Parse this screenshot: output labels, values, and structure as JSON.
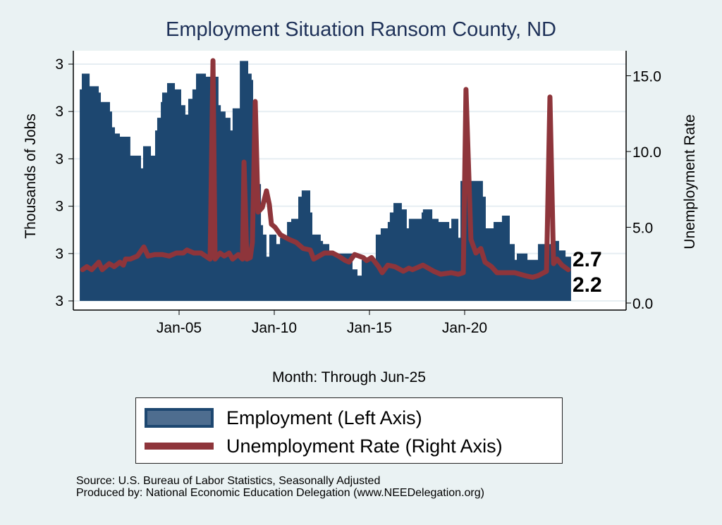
{
  "chart_data": {
    "type": "bar+line",
    "title": "Employment Situation Ransom  County, ND",
    "xlabel": "Month: Through Jun-25",
    "ylabel_left": "Thousands of Jobs",
    "ylabel_right": "Unemployment Rate",
    "x_ticks": [
      {
        "year": 2005,
        "label": "Jan-05"
      },
      {
        "year": 2010,
        "label": "Jan-10"
      },
      {
        "year": 2015,
        "label": "Jan-15"
      },
      {
        "year": 2020,
        "label": "Jan-20"
      }
    ],
    "left_ticks": [
      {
        "value": 2.6,
        "label": "3"
      },
      {
        "value": 2.75,
        "label": "3"
      },
      {
        "value": 2.9,
        "label": "3"
      },
      {
        "value": 3.05,
        "label": "3"
      },
      {
        "value": 3.2,
        "label": "3"
      },
      {
        "value": 3.35,
        "label": "3"
      }
    ],
    "right_ticks": [
      {
        "value": 0,
        "label": "0.0"
      },
      {
        "value": 5,
        "label": "5.0"
      },
      {
        "value": 10,
        "label": "10.0"
      },
      {
        "value": 15,
        "label": "15.0"
      }
    ],
    "xlim": [
      1999.75,
      2025.6
    ],
    "ylim_left": [
      2.6,
      3.35
    ],
    "ylim_right": [
      0,
      15
    ],
    "grid": true,
    "end_labels": [
      "2.7",
      "2.2"
    ],
    "series": [
      {
        "name": "Employment (Left Axis)",
        "type": "step-area",
        "color": "#1d4770",
        "points": [
          [
            1999.78,
            3.27
          ],
          [
            1999.89,
            3.32
          ],
          [
            2000.3,
            3.28
          ],
          [
            2000.78,
            3.26
          ],
          [
            2000.89,
            3.23
          ],
          [
            2001.37,
            3.2
          ],
          [
            2001.48,
            3.15
          ],
          [
            2001.63,
            3.13
          ],
          [
            2001.89,
            3.12
          ],
          [
            2002.44,
            3.06
          ],
          [
            2003.0,
            3.02
          ],
          [
            2003.11,
            3.09
          ],
          [
            2003.52,
            3.06
          ],
          [
            2003.74,
            3.14
          ],
          [
            2003.85,
            3.18
          ],
          [
            2004.04,
            3.23
          ],
          [
            2004.11,
            3.26
          ],
          [
            2004.37,
            3.29
          ],
          [
            2004.78,
            3.27
          ],
          [
            2005.11,
            3.22
          ],
          [
            2005.33,
            3.19
          ],
          [
            2005.48,
            3.24
          ],
          [
            2005.7,
            3.27
          ],
          [
            2005.89,
            3.32
          ],
          [
            2006.41,
            3.31
          ],
          [
            2007.07,
            3.22
          ],
          [
            2007.19,
            3.2
          ],
          [
            2007.44,
            3.18
          ],
          [
            2007.7,
            3.14
          ],
          [
            2007.81,
            3.21
          ],
          [
            2008.19,
            3.36
          ],
          [
            2008.63,
            3.32
          ],
          [
            2008.81,
            3.3
          ],
          [
            2008.89,
            3.11
          ],
          [
            2009.11,
            2.97
          ],
          [
            2009.3,
            2.84
          ],
          [
            2009.41,
            2.81
          ],
          [
            2009.59,
            2.74
          ],
          [
            2009.74,
            2.81
          ],
          [
            2010.11,
            2.78
          ],
          [
            2010.3,
            2.8
          ],
          [
            2010.67,
            2.85
          ],
          [
            2010.89,
            2.86
          ],
          [
            2011.26,
            2.93
          ],
          [
            2011.44,
            2.95
          ],
          [
            2011.89,
            2.88
          ],
          [
            2012.0,
            2.81
          ],
          [
            2012.44,
            2.79
          ],
          [
            2012.56,
            2.78
          ],
          [
            2012.89,
            2.75
          ],
          [
            2014.11,
            2.7
          ],
          [
            2014.37,
            2.68
          ],
          [
            2014.59,
            2.73
          ],
          [
            2015.33,
            2.81
          ],
          [
            2015.59,
            2.83
          ],
          [
            2015.96,
            2.85
          ],
          [
            2016.07,
            2.88
          ],
          [
            2016.26,
            2.91
          ],
          [
            2016.7,
            2.89
          ],
          [
            2016.96,
            2.83
          ],
          [
            2017.07,
            2.86
          ],
          [
            2017.74,
            2.88
          ],
          [
            2017.81,
            2.89
          ],
          [
            2018.3,
            2.86
          ],
          [
            2018.63,
            2.85
          ],
          [
            2019.19,
            2.83
          ],
          [
            2019.3,
            2.86
          ],
          [
            2019.67,
            2.8
          ],
          [
            2019.78,
            2.98
          ],
          [
            2020.96,
            2.93
          ],
          [
            2021.11,
            2.83
          ],
          [
            2021.52,
            2.85
          ],
          [
            2021.96,
            2.87
          ],
          [
            2022.37,
            2.78
          ],
          [
            2022.63,
            2.73
          ],
          [
            2022.74,
            2.75
          ],
          [
            2023.3,
            2.73
          ],
          [
            2023.85,
            2.78
          ],
          [
            2024.74,
            2.79
          ],
          [
            2024.96,
            2.76
          ],
          [
            2025.3,
            2.74
          ],
          [
            2025.59,
            2.74
          ]
        ]
      },
      {
        "name": "Unemployment Rate (Right Axis)",
        "type": "line",
        "color": "#8e353b",
        "points": [
          [
            1999.93,
            2.2
          ],
          [
            2000.15,
            2.4
          ],
          [
            2000.41,
            2.2
          ],
          [
            2000.78,
            2.7
          ],
          [
            2000.96,
            2.2
          ],
          [
            2001.33,
            2.6
          ],
          [
            2001.59,
            2.4
          ],
          [
            2001.89,
            2.7
          ],
          [
            2002.07,
            2.5
          ],
          [
            2002.19,
            2.9
          ],
          [
            2002.44,
            2.9
          ],
          [
            2002.81,
            3.1
          ],
          [
            2003.15,
            3.7
          ],
          [
            2003.37,
            3.1
          ],
          [
            2003.74,
            3.2
          ],
          [
            2004.11,
            3.2
          ],
          [
            2004.48,
            3.1
          ],
          [
            2004.85,
            3.3
          ],
          [
            2005.22,
            3.3
          ],
          [
            2005.41,
            3.5
          ],
          [
            2005.78,
            3.3
          ],
          [
            2006.15,
            3.3
          ],
          [
            2006.63,
            2.9
          ],
          [
            2006.78,
            16.0
          ],
          [
            2006.89,
            2.9
          ],
          [
            2007.15,
            3.3
          ],
          [
            2007.37,
            3.1
          ],
          [
            2007.63,
            3.3
          ],
          [
            2007.81,
            2.9
          ],
          [
            2008.11,
            3.2
          ],
          [
            2008.33,
            2.9
          ],
          [
            2008.41,
            9.3
          ],
          [
            2008.56,
            2.9
          ],
          [
            2008.74,
            3.0
          ],
          [
            2008.85,
            4.0
          ],
          [
            2009.0,
            13.3
          ],
          [
            2009.15,
            6.0
          ],
          [
            2009.37,
            6.3
          ],
          [
            2009.59,
            7.4
          ],
          [
            2009.74,
            6.5
          ],
          [
            2009.85,
            5.2
          ],
          [
            2010.04,
            5.0
          ],
          [
            2010.33,
            4.5
          ],
          [
            2010.78,
            4.2
          ],
          [
            2011.15,
            4.0
          ],
          [
            2011.52,
            3.6
          ],
          [
            2011.89,
            3.5
          ],
          [
            2012.07,
            2.9
          ],
          [
            2012.63,
            3.3
          ],
          [
            2013.07,
            3.3
          ],
          [
            2013.37,
            3.1
          ],
          [
            2013.74,
            2.8
          ],
          [
            2013.93,
            2.7
          ],
          [
            2014.22,
            3.2
          ],
          [
            2014.67,
            3.0
          ],
          [
            2014.85,
            2.8
          ],
          [
            2015.11,
            3.0
          ],
          [
            2015.48,
            2.4
          ],
          [
            2015.67,
            2.0
          ],
          [
            2015.96,
            2.5
          ],
          [
            2016.33,
            2.4
          ],
          [
            2016.78,
            2.1
          ],
          [
            2017.07,
            2.3
          ],
          [
            2017.26,
            2.2
          ],
          [
            2017.81,
            2.5
          ],
          [
            2018.37,
            2.1
          ],
          [
            2018.74,
            1.9
          ],
          [
            2019.3,
            2.0
          ],
          [
            2019.67,
            1.9
          ],
          [
            2019.93,
            2.0
          ],
          [
            2020.07,
            14.1
          ],
          [
            2020.33,
            4.2
          ],
          [
            2020.59,
            3.3
          ],
          [
            2020.85,
            3.6
          ],
          [
            2021.07,
            2.7
          ],
          [
            2021.41,
            2.4
          ],
          [
            2021.7,
            2.0
          ],
          [
            2022.26,
            2.0
          ],
          [
            2022.63,
            2.0
          ],
          [
            2023.19,
            1.8
          ],
          [
            2023.56,
            1.7
          ],
          [
            2023.85,
            1.8
          ],
          [
            2024.3,
            2.1
          ],
          [
            2024.48,
            13.6
          ],
          [
            2024.67,
            2.6
          ],
          [
            2024.85,
            2.9
          ],
          [
            2025.11,
            2.5
          ],
          [
            2025.44,
            2.2
          ]
        ]
      }
    ]
  },
  "legend": {
    "employment": "Employment (Left Axis)",
    "unemployment": "Unemployment Rate (Right Axis)"
  },
  "source": {
    "line1": "Source: U.S. Bureau of Labor Statistics, Seasonally Adjusted",
    "line2": "Produced by: National Economic Education Delegation (www.NEEDelegation.org)"
  }
}
